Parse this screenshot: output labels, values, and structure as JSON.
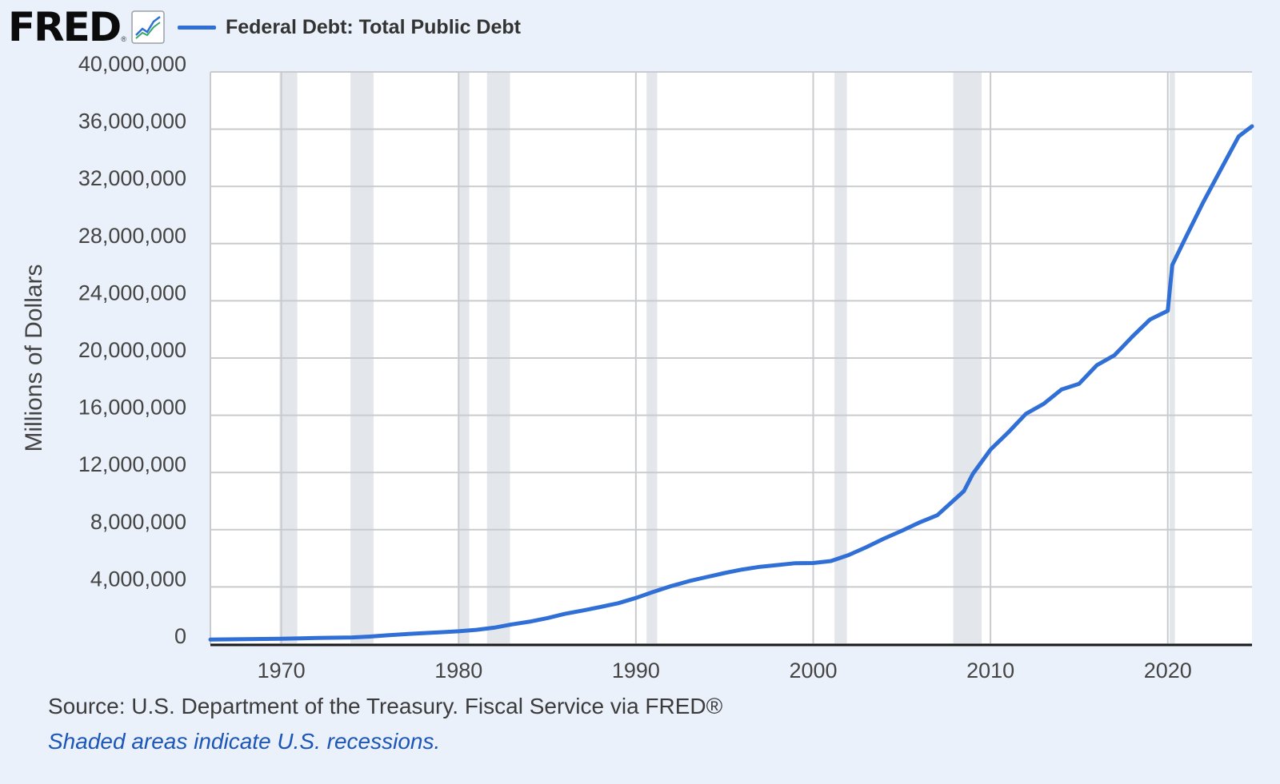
{
  "header": {
    "logo_text": "FRED",
    "logo_registered": "®",
    "logo_icon": "line-chart-icon",
    "series_label": "Federal Debt: Total Public Debt"
  },
  "colors": {
    "series": "#2f6fd6",
    "recession": "#e3e6ea",
    "grid": "#c9cbce",
    "background": "#eaf1fa",
    "plot_bg": "#ffffff",
    "note": "#1b56b8"
  },
  "footer": {
    "source": "Source: U.S. Department of the Treasury. Fiscal Service via FRED®",
    "note": "Shaded areas indicate U.S. recessions."
  },
  "chart_data": {
    "type": "line",
    "title": "Federal Debt: Total Public Debt",
    "xlabel": "",
    "ylabel": "Millions of Dollars",
    "xlim": [
      1966.0,
      2024.75
    ],
    "ylim": [
      0,
      40000000
    ],
    "grid": true,
    "x_ticks": [
      1970,
      1980,
      1990,
      2000,
      2010,
      2020
    ],
    "x_tick_labels": [
      "1970",
      "1980",
      "1990",
      "2000",
      "2010",
      "2020"
    ],
    "y_ticks": [
      0,
      4000000,
      8000000,
      12000000,
      16000000,
      20000000,
      24000000,
      28000000,
      32000000,
      36000000,
      40000000
    ],
    "y_tick_labels": [
      "0",
      "4,000,000",
      "8,000,000",
      "12,000,000",
      "16,000,000",
      "20,000,000",
      "24,000,000",
      "28,000,000",
      "32,000,000",
      "36,000,000",
      "40,000,000"
    ],
    "recessions": [
      [
        1969.9,
        1970.9
      ],
      [
        1973.9,
        1975.2
      ],
      [
        1980.0,
        1980.6
      ],
      [
        1981.6,
        1982.9
      ],
      [
        1990.6,
        1991.2
      ],
      [
        2001.2,
        2001.9
      ],
      [
        2007.9,
        2009.5
      ],
      [
        2020.1,
        2020.4
      ]
    ],
    "series": [
      {
        "name": "Federal Debt: Total Public Debt",
        "x": [
          1966.0,
          1968,
          1970,
          1972,
          1974,
          1975,
          1976,
          1977,
          1978,
          1979,
          1980,
          1981,
          1982,
          1983,
          1984,
          1985,
          1986,
          1987,
          1988,
          1989,
          1990,
          1991,
          1992,
          1993,
          1994,
          1995,
          1996,
          1997,
          1998,
          1999,
          2000,
          2001,
          2002,
          2003,
          2004,
          2005,
          2006,
          2007,
          2008.5,
          2009,
          2010,
          2011,
          2012,
          2013,
          2014,
          2015,
          2016,
          2017,
          2018,
          2019,
          2020.0,
          2020.25,
          2021,
          2022,
          2023,
          2024,
          2024.75
        ],
        "values": [
          320000,
          350000,
          380000,
          430000,
          470000,
          530000,
          620000,
          700000,
          770000,
          830000,
          900000,
          1000000,
          1150000,
          1380000,
          1570000,
          1820000,
          2120000,
          2350000,
          2600000,
          2860000,
          3230000,
          3660000,
          4060000,
          4410000,
          4690000,
          4970000,
          5220000,
          5410000,
          5530000,
          5660000,
          5670000,
          5810000,
          6230000,
          6780000,
          7380000,
          7930000,
          8510000,
          9010000,
          10700000,
          11900000,
          13600000,
          14800000,
          16100000,
          16800000,
          17800000,
          18200000,
          19500000,
          20200000,
          21500000,
          22700000,
          23300000,
          26500000,
          28400000,
          30900000,
          33200000,
          35500000,
          36200000
        ]
      }
    ]
  }
}
